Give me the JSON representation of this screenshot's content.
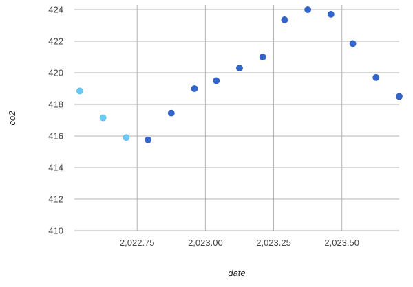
{
  "chart_data": {
    "type": "scatter",
    "xlabel": "date",
    "ylabel": "co2",
    "xlim": [
      2022.52,
      2023.71
    ],
    "ylim": [
      410,
      424
    ],
    "x_ticks": [
      2022.75,
      2023.0,
      2023.25,
      2023.5
    ],
    "x_tick_labels": [
      "2,022.75",
      "2,023.00",
      "2,023.25",
      "2,023.50"
    ],
    "y_ticks": [
      410,
      412,
      414,
      416,
      418,
      420,
      422,
      424
    ],
    "y_tick_labels": [
      "410",
      "412",
      "414",
      "416",
      "418",
      "420",
      "422",
      "424"
    ],
    "grid": true,
    "legend": "none",
    "colors": {
      "highlight": "#6cc8f4",
      "primary": "#3366cc",
      "grid": "#b3b3b3"
    },
    "series": [
      {
        "color": "#6cc8f4",
        "points": [
          {
            "x": 2022.54,
            "y": 418.85
          },
          {
            "x": 2022.625,
            "y": 417.15
          },
          {
            "x": 2022.71,
            "y": 415.9
          }
        ]
      },
      {
        "color": "#3366cc",
        "points": [
          {
            "x": 2022.79,
            "y": 415.75
          },
          {
            "x": 2022.875,
            "y": 417.45
          },
          {
            "x": 2022.96,
            "y": 419.0
          },
          {
            "x": 2023.04,
            "y": 419.5
          },
          {
            "x": 2023.125,
            "y": 420.3
          },
          {
            "x": 2023.21,
            "y": 421.0
          },
          {
            "x": 2023.29,
            "y": 423.35
          },
          {
            "x": 2023.375,
            "y": 424.0
          },
          {
            "x": 2023.46,
            "y": 423.7
          },
          {
            "x": 2023.54,
            "y": 421.85
          },
          {
            "x": 2023.625,
            "y": 419.7
          },
          {
            "x": 2023.71,
            "y": 418.5
          }
        ]
      }
    ]
  }
}
